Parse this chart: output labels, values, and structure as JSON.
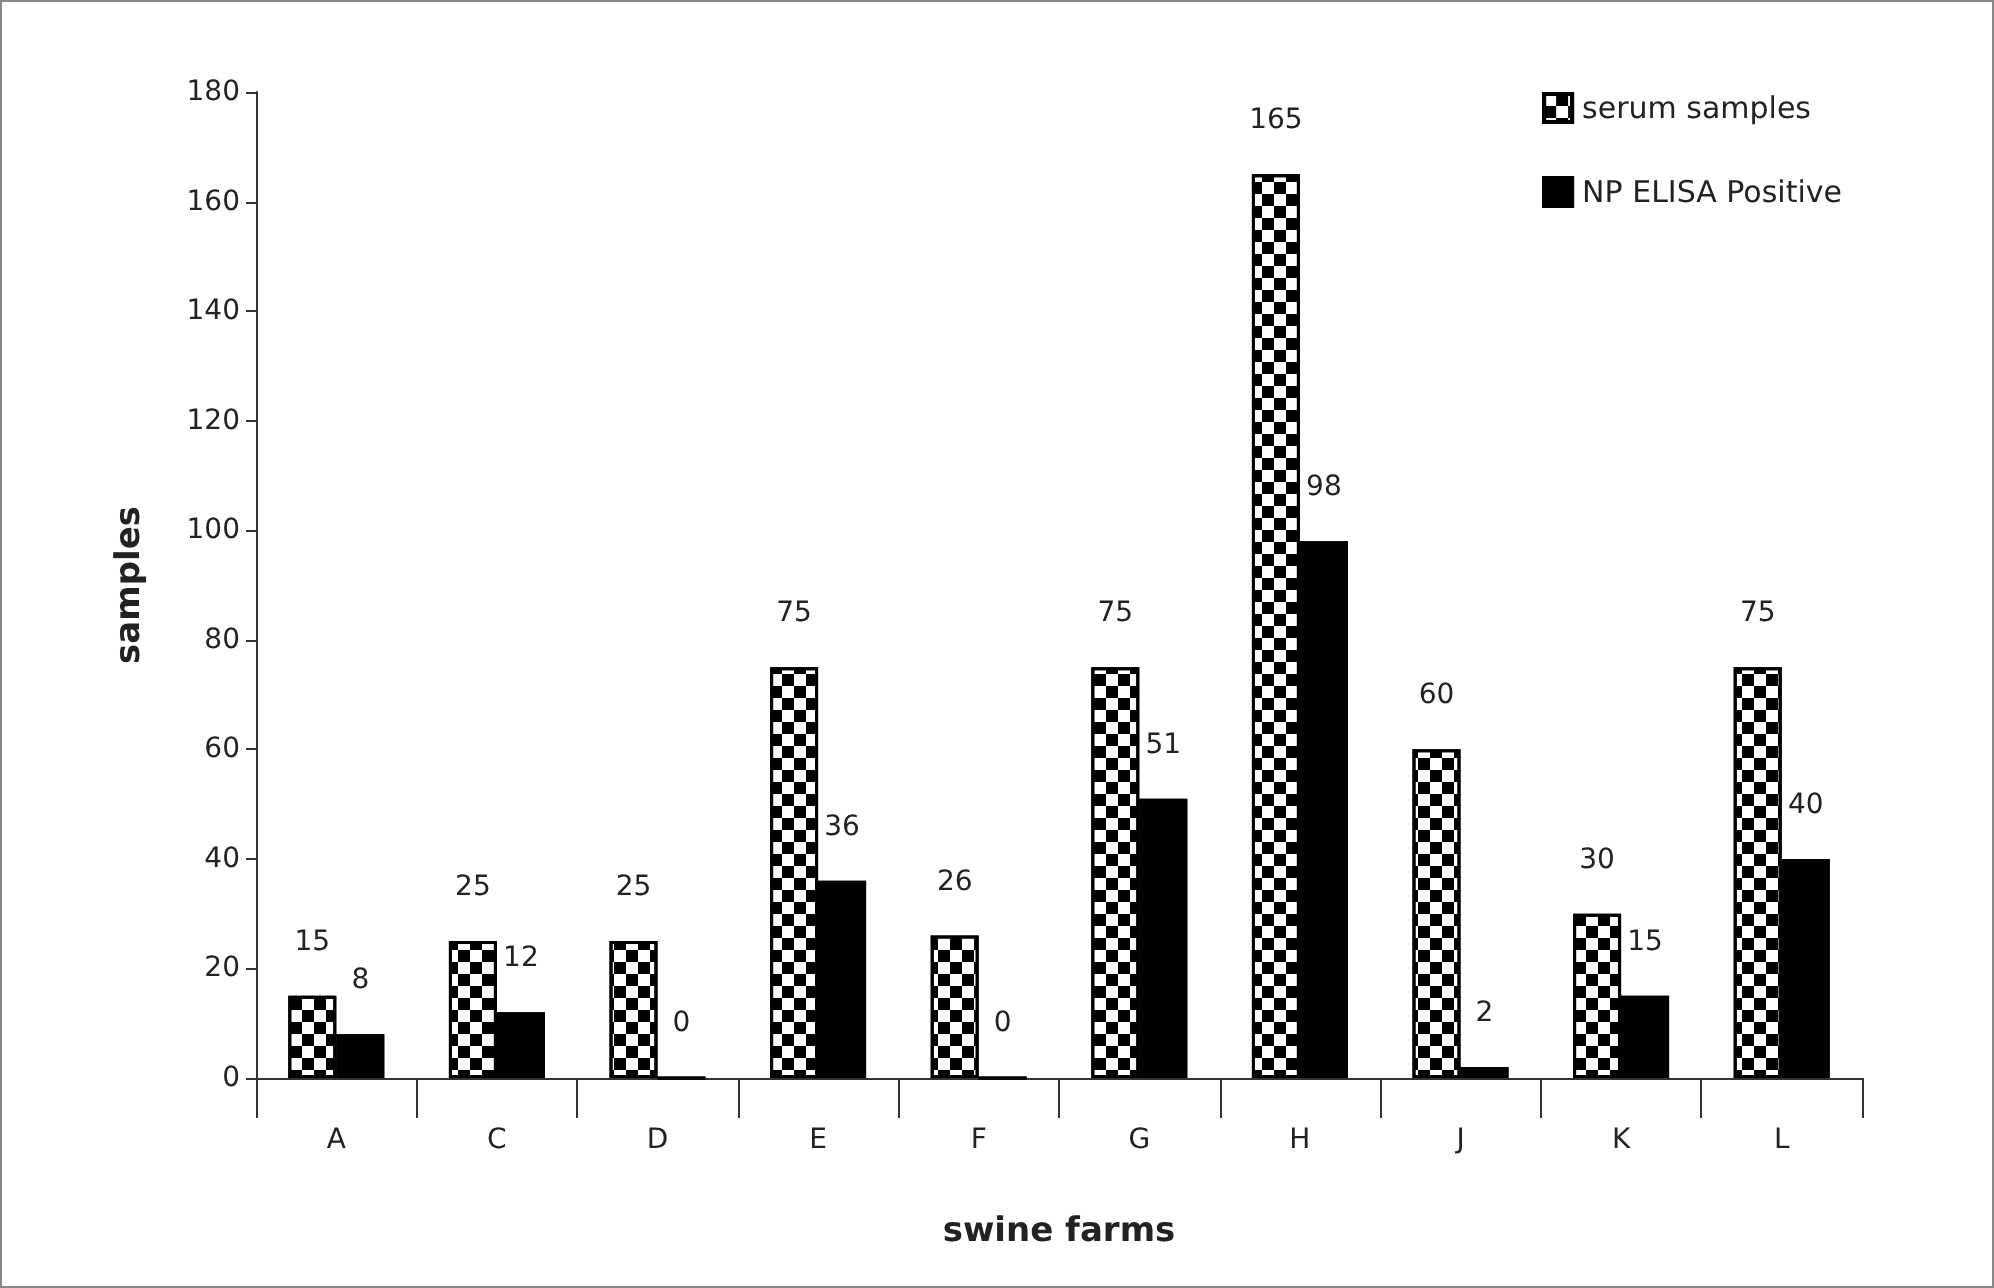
{
  "chart_data": {
    "type": "bar",
    "xlabel": "swine farms",
    "ylabel": "samples",
    "categories": [
      "A",
      "C",
      "D",
      "E",
      "F",
      "G",
      "H",
      "J",
      "K",
      "L"
    ],
    "series": [
      {
        "name": "serum samples",
        "color": "#ffffff",
        "values": [
          15,
          25,
          25,
          75,
          26,
          75,
          165,
          60,
          30,
          75
        ]
      },
      {
        "name": "NP ELISA Positive",
        "color": "#000000",
        "values": [
          8,
          12,
          0,
          36,
          0,
          51,
          98,
          2,
          15,
          40
        ]
      }
    ],
    "ylim": [
      0,
      180
    ],
    "yticks": [
      0,
      20,
      40,
      60,
      80,
      100,
      120,
      140,
      160,
      180
    ],
    "data_labels": true,
    "grid": false,
    "legend": "top right"
  }
}
